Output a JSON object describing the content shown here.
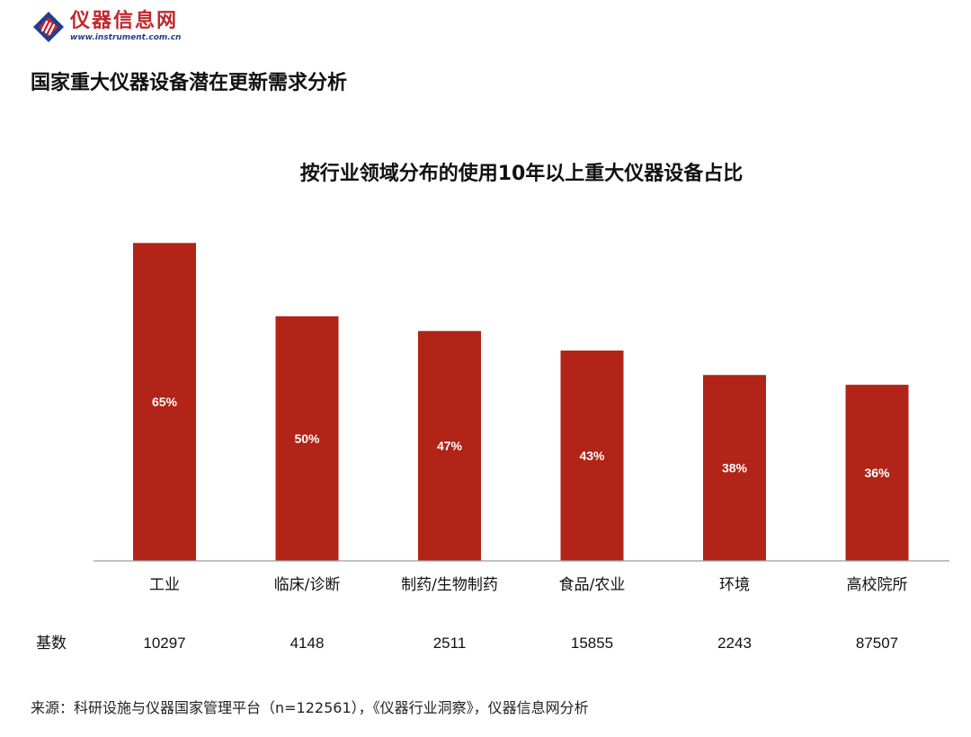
{
  "header": {
    "logo_cn": "仪器信息网",
    "logo_en": "www.instrument.com.cn",
    "page_title": "国家重大仪器设备潜在更新需求分析"
  },
  "chart_data": {
    "type": "bar",
    "title": "按行业领域分布的使用10年以上重大仪器设备占比",
    "categories": [
      "工业",
      "临床/诊断",
      "制药/生物制药",
      "食品/农业",
      "环境",
      "高校院所"
    ],
    "values": [
      65,
      50,
      47,
      43,
      38,
      36
    ],
    "value_labels": [
      "65%",
      "50%",
      "47%",
      "43%",
      "38%",
      "36%"
    ],
    "base_label": "基数",
    "base_counts": [
      "10297",
      "4148",
      "2511",
      "15855",
      "2243",
      "87507"
    ],
    "ylim": [
      0,
      68
    ],
    "bar_color": "#b22318",
    "label_color": "#ffffff",
    "xlabel": "",
    "ylabel": ""
  },
  "footer": {
    "source": "来源：科研设施与仪器国家管理平台（n=122561），《仪器行业洞察》，仪器信息网分析"
  }
}
